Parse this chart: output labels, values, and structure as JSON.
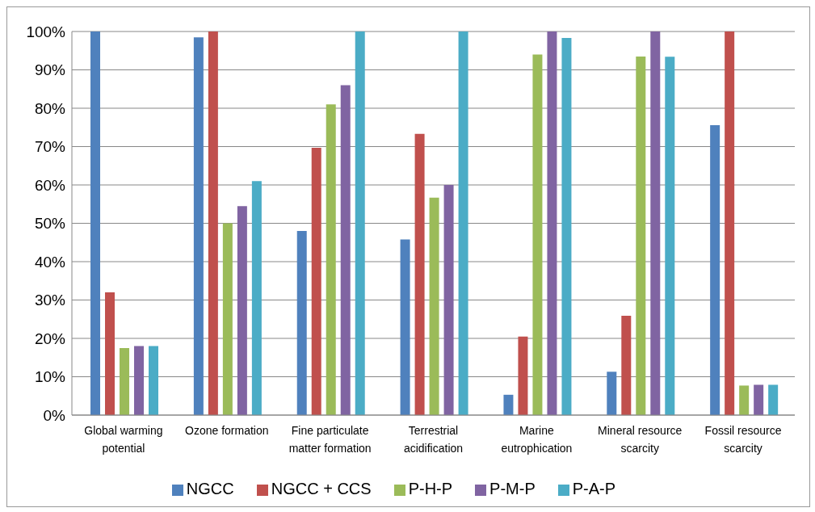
{
  "chart_data": {
    "type": "bar",
    "categories": [
      "Global warming potential",
      "Ozone formation",
      "Fine particulate matter formation",
      "Terrestrial acidification",
      "Marine eutrophication",
      "Mineral resource scarcity",
      "Fossil resource scarcity"
    ],
    "series": [
      {
        "name": "NGCC",
        "color": "#4f81bd",
        "values": [
          100,
          98.5,
          48,
          45.8,
          5.3,
          11.3,
          75.6
        ]
      },
      {
        "name": "NGCC + CCS",
        "color": "#c0504d",
        "values": [
          32,
          100,
          69.7,
          73.3,
          20.5,
          25.9,
          100
        ]
      },
      {
        "name": "P-H-P",
        "color": "#9bbb59",
        "values": [
          17.5,
          50,
          81,
          56.7,
          94,
          93.5,
          7.7
        ]
      },
      {
        "name": "P-M-P",
        "color": "#8064a2",
        "values": [
          18,
          54.5,
          86,
          60,
          100,
          100,
          7.9
        ]
      },
      {
        "name": "P-A-P",
        "color": "#4bacc6",
        "values": [
          18,
          61,
          100,
          100,
          98.3,
          93.4,
          7.9
        ]
      }
    ],
    "ylim": [
      0,
      100
    ],
    "yticks": [
      {
        "value": 0,
        "label": "0%"
      },
      {
        "value": 10,
        "label": "10%"
      },
      {
        "value": 20,
        "label": "20%"
      },
      {
        "value": 30,
        "label": "30%"
      },
      {
        "value": 40,
        "label": "40%"
      },
      {
        "value": 50,
        "label": "50%"
      },
      {
        "value": 60,
        "label": "60%"
      },
      {
        "value": 70,
        "label": "70%"
      },
      {
        "value": 80,
        "label": "80%"
      },
      {
        "value": 90,
        "label": "90%"
      },
      {
        "value": 100,
        "label": "100%"
      }
    ],
    "grid": "y",
    "legend": "bottom"
  }
}
